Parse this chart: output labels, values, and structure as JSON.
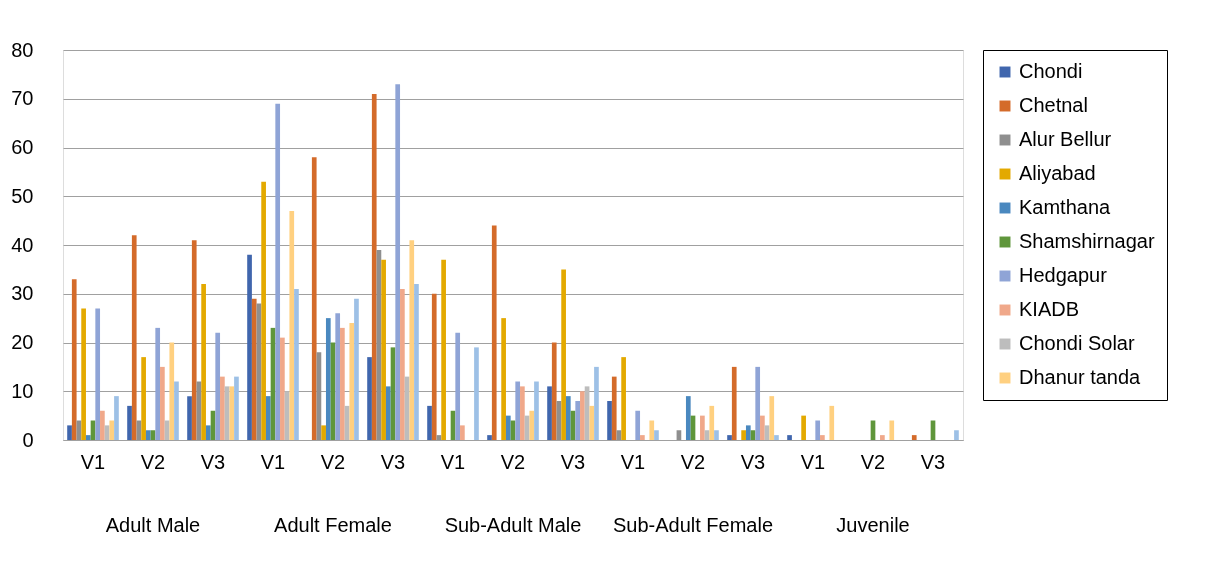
{
  "chart_data": {
    "type": "bar",
    "categories": [
      "V1",
      "V2",
      "V3",
      "V1",
      "V2",
      "V3",
      "V1",
      "V2",
      "V3",
      "V1",
      "V2",
      "V3",
      "V1",
      "V2",
      "V3"
    ],
    "annotations": [
      "Adult Male",
      "Adult Female",
      "Sub-Adult Male",
      "Sub-Adult Female",
      "Juvenile"
    ],
    "ylim": [
      0,
      80
    ],
    "yticks": [
      0,
      10,
      20,
      30,
      40,
      50,
      60,
      70,
      80
    ],
    "grid": "y",
    "legend": "right",
    "series": [
      {
        "name": "Chondi",
        "color": "#4066ad",
        "values": [
          3,
          7,
          9,
          38,
          0,
          17,
          7,
          1,
          11,
          8,
          0,
          1,
          1,
          0,
          0
        ]
      },
      {
        "name": "Chetnal",
        "color": "#d46b2a",
        "values": [
          33,
          42,
          41,
          29,
          58,
          71,
          30,
          44,
          20,
          13,
          0,
          15,
          0,
          0,
          1
        ]
      },
      {
        "name": "Alur Bellur",
        "color": "#8f8f8f",
        "values": [
          4,
          4,
          12,
          28,
          18,
          39,
          1,
          0,
          8,
          2,
          2,
          0,
          0,
          0,
          0
        ]
      },
      {
        "name": "Aliyabad",
        "color": "#e3a900",
        "values": [
          27,
          17,
          32,
          53,
          3,
          37,
          37,
          25,
          35,
          17,
          0,
          2,
          5,
          0,
          0
        ]
      },
      {
        "name": "Kamthana",
        "color": "#4a88bf",
        "values": [
          1,
          2,
          3,
          9,
          25,
          11,
          0,
          5,
          9,
          0,
          9,
          3,
          0,
          0,
          0
        ]
      },
      {
        "name": "Shamshirnagar",
        "color": "#5f963b",
        "values": [
          4,
          2,
          6,
          23,
          20,
          19,
          6,
          4,
          6,
          0,
          5,
          2,
          0,
          4,
          4
        ]
      },
      {
        "name": "Hedgapur",
        "color": "#8fa4d6",
        "values": [
          27,
          23,
          22,
          69,
          26,
          73,
          22,
          12,
          8,
          6,
          0,
          15,
          4,
          0,
          0
        ]
      },
      {
        "name": "KIADB",
        "color": "#f0a88a",
        "values": [
          6,
          15,
          13,
          21,
          23,
          31,
          3,
          11,
          10,
          1,
          5,
          5,
          1,
          1,
          0
        ]
      },
      {
        "name": "Chondi Solar",
        "color": "#bdbdbd",
        "values": [
          3,
          4,
          11,
          10,
          7,
          13,
          0,
          5,
          11,
          0,
          2,
          3,
          0,
          0,
          0
        ]
      },
      {
        "name": "Dhanur tanda",
        "color": "#ffd080",
        "values": [
          4,
          20,
          11,
          47,
          24,
          41,
          0,
          6,
          7,
          4,
          7,
          9,
          7,
          4,
          0
        ]
      },
      {
        "color": "#9dc0e6",
        "values": [
          9,
          12,
          13,
          31,
          29,
          32,
          19,
          12,
          15,
          2,
          2,
          1,
          0,
          0,
          2
        ]
      }
    ]
  }
}
